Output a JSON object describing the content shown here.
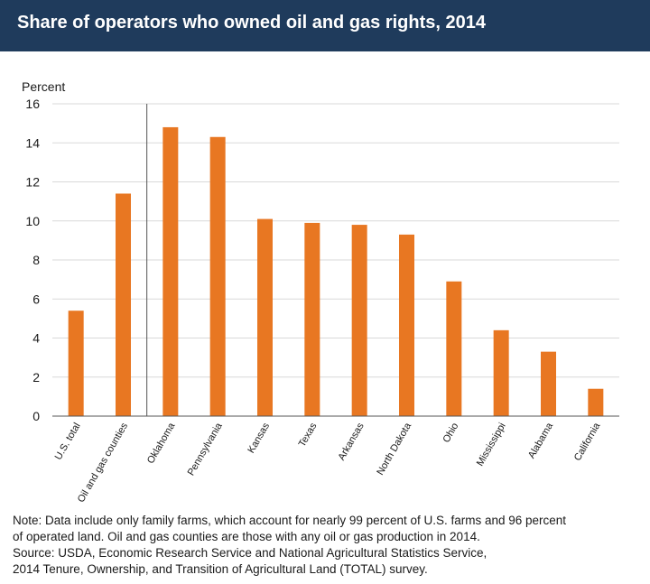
{
  "chart_data": {
    "type": "bar",
    "title": "Share of operators who owned oil and gas rights, 2014",
    "ylabel": "Percent",
    "xlabel": "",
    "ylim": [
      0,
      16
    ],
    "yticks": [
      0,
      2,
      4,
      6,
      8,
      10,
      12,
      14,
      16
    ],
    "grid": true,
    "bar_color": "#e87722",
    "categories": [
      "U.S. total",
      "Oil and gas counties",
      "Oklahoma",
      "Pennsylvania",
      "Kansas",
      "Texas",
      "Arkansas",
      "North Dakota",
      "Ohio",
      "Mississippi",
      "Alabama",
      "California"
    ],
    "values": [
      5.4,
      11.4,
      14.8,
      14.3,
      10.1,
      9.9,
      9.8,
      9.3,
      6.9,
      4.4,
      3.3,
      1.4
    ]
  },
  "note": {
    "line1": "Note: Data include only family farms, which account for nearly 99 percent of U.S. farms and 96 percent",
    "line2": "of operated land. Oil and gas counties are those with any oil or gas production in 2014.",
    "line3": "Source: USDA, Economic Research Service and National Agricultural Statistics Service,",
    "line4": "2014 Tenure, Ownership, and Transition of Agricultural Land (TOTAL) survey."
  }
}
